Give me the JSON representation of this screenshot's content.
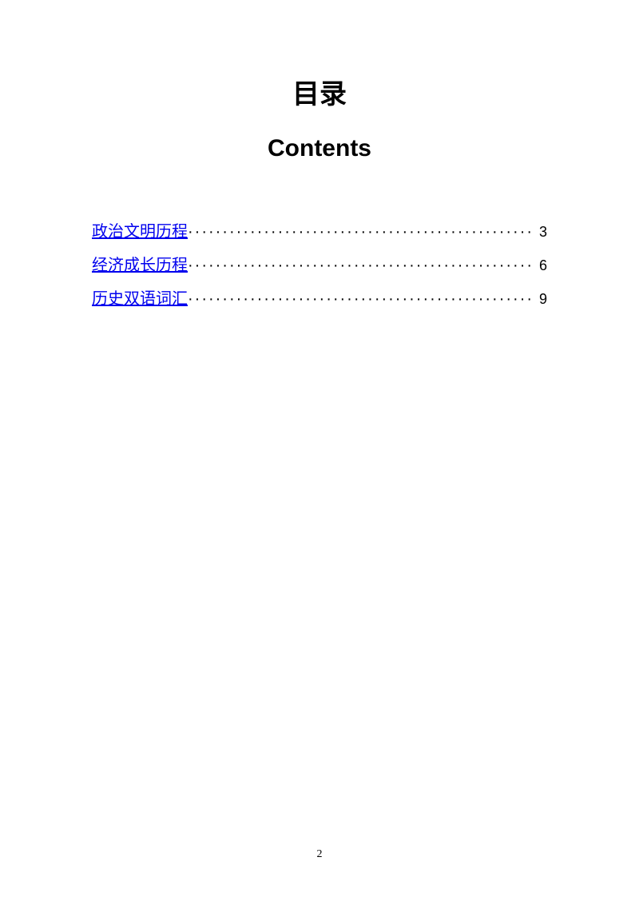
{
  "title": {
    "chinese": "目录",
    "english": "Contents"
  },
  "toc": {
    "entries": [
      {
        "label": "政治文明历程",
        "page": "3"
      },
      {
        "label": "经济成长历程",
        "page": "6"
      },
      {
        "label": "历史双语词汇",
        "page": "9"
      }
    ]
  },
  "pageNumber": "2",
  "colors": {
    "background": "#ffffff",
    "text": "#000000",
    "link": "#0000ee"
  }
}
